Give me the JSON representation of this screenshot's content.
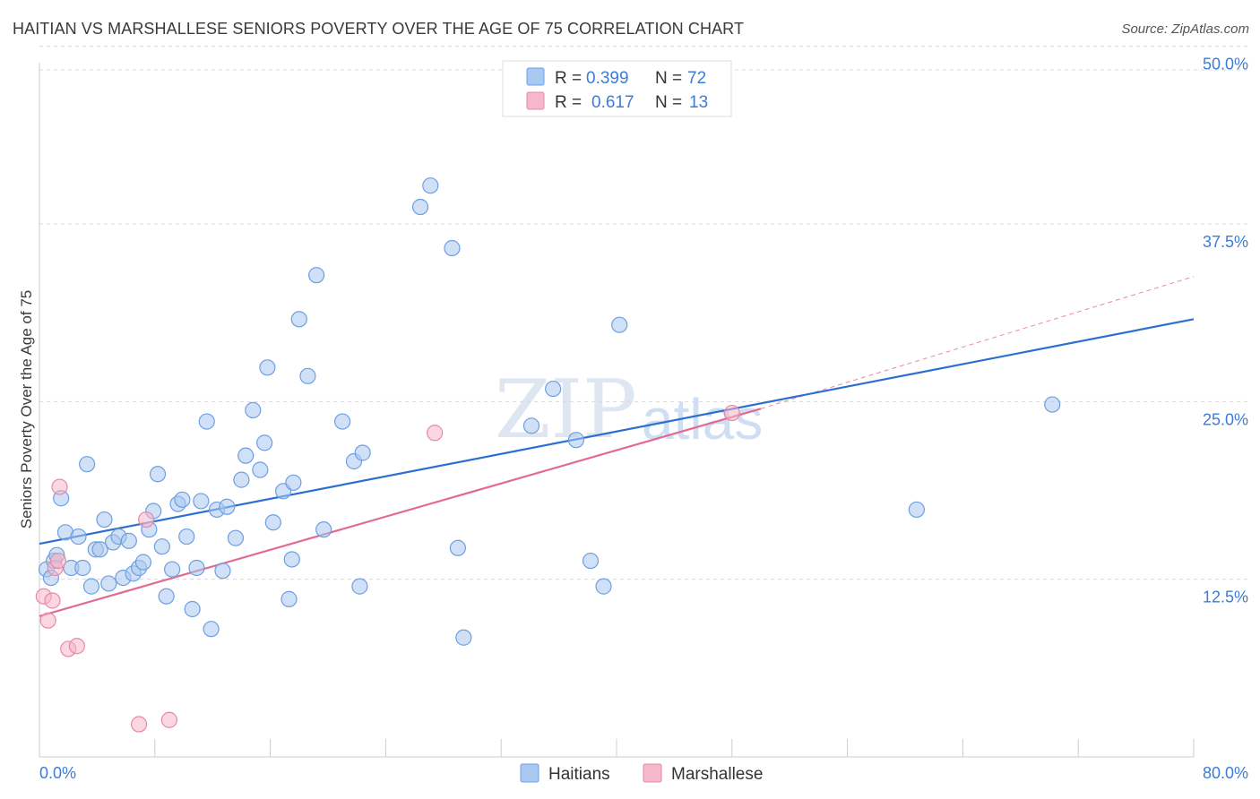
{
  "title": "HAITIAN VS MARSHALLESE SENIORS POVERTY OVER THE AGE OF 75 CORRELATION CHART",
  "source": "Source: ZipAtlas.com",
  "watermark": {
    "zip": "ZIP",
    "atlas": "atlas"
  },
  "chart_data": {
    "type": "scatter",
    "ylabel": "Seniors Poverty Over the Age of 75",
    "xlim": [
      0,
      80
    ],
    "ylim": [
      0,
      52
    ],
    "y_ticks": [
      {
        "value": 12.5,
        "label": "12.5%"
      },
      {
        "value": 25.0,
        "label": "25.0%"
      },
      {
        "value": 37.5,
        "label": "37.5%"
      },
      {
        "value": 50.0,
        "label": "50.0%"
      }
    ],
    "x_tick_labels": {
      "min": "0.0%",
      "max": "80.0%"
    },
    "x_minor_ticks": [
      8,
      16,
      24,
      32,
      40,
      48,
      56,
      64,
      72,
      80
    ],
    "grid": true,
    "legend_top": [
      {
        "r_label": "R =",
        "r": "0.399",
        "n_label": "N =",
        "n": "72",
        "color": "#a9c8f0"
      },
      {
        "r_label": "R =",
        "r": "0.617",
        "n_label": "N =",
        "n": "13",
        "color": "#f5b7c9"
      }
    ],
    "series": [
      {
        "name": "Haitians",
        "color": "#a9c8f0",
        "stroke": "#6d9fe0",
        "trend": {
          "x0": 0,
          "y0": 15.0,
          "x1": 80,
          "y1": 30.8,
          "color": "#2b6fd1"
        },
        "points": [
          [
            0.5,
            13.2
          ],
          [
            0.8,
            12.6
          ],
          [
            1.0,
            13.8
          ],
          [
            1.2,
            14.2
          ],
          [
            1.5,
            18.2
          ],
          [
            1.8,
            15.8
          ],
          [
            2.2,
            13.3
          ],
          [
            2.7,
            15.5
          ],
          [
            3.0,
            13.3
          ],
          [
            3.3,
            20.6
          ],
          [
            3.6,
            12.0
          ],
          [
            3.9,
            14.6
          ],
          [
            4.2,
            14.6
          ],
          [
            4.5,
            16.7
          ],
          [
            4.8,
            12.2
          ],
          [
            5.1,
            15.1
          ],
          [
            5.5,
            15.5
          ],
          [
            5.8,
            12.6
          ],
          [
            6.2,
            15.2
          ],
          [
            6.5,
            12.9
          ],
          [
            6.9,
            13.3
          ],
          [
            7.2,
            13.7
          ],
          [
            7.6,
            16.0
          ],
          [
            7.9,
            17.3
          ],
          [
            8.2,
            19.9
          ],
          [
            8.5,
            14.8
          ],
          [
            8.8,
            11.3
          ],
          [
            9.2,
            13.2
          ],
          [
            9.6,
            17.8
          ],
          [
            9.9,
            18.1
          ],
          [
            10.2,
            15.5
          ],
          [
            10.6,
            10.4
          ],
          [
            10.9,
            13.3
          ],
          [
            11.2,
            18.0
          ],
          [
            11.6,
            23.6
          ],
          [
            11.9,
            9.0
          ],
          [
            12.3,
            17.4
          ],
          [
            12.7,
            13.1
          ],
          [
            13.0,
            17.6
          ],
          [
            13.6,
            15.4
          ],
          [
            14.0,
            19.5
          ],
          [
            14.3,
            21.2
          ],
          [
            14.8,
            24.4
          ],
          [
            15.3,
            20.2
          ],
          [
            15.6,
            22.1
          ],
          [
            15.8,
            27.4
          ],
          [
            16.2,
            16.5
          ],
          [
            16.9,
            18.7
          ],
          [
            17.3,
            11.1
          ],
          [
            17.5,
            13.9
          ],
          [
            17.6,
            19.3
          ],
          [
            18.0,
            30.8
          ],
          [
            18.6,
            26.8
          ],
          [
            19.2,
            33.9
          ],
          [
            19.7,
            16.0
          ],
          [
            21.0,
            23.6
          ],
          [
            21.8,
            20.8
          ],
          [
            22.2,
            12.0
          ],
          [
            22.4,
            21.4
          ],
          [
            26.4,
            38.7
          ],
          [
            27.1,
            40.2
          ],
          [
            28.6,
            35.8
          ],
          [
            29.0,
            14.7
          ],
          [
            29.4,
            8.4
          ],
          [
            34.1,
            23.3
          ],
          [
            35.6,
            25.9
          ],
          [
            37.2,
            22.3
          ],
          [
            38.2,
            13.8
          ],
          [
            39.1,
            12.0
          ],
          [
            40.2,
            30.4
          ],
          [
            60.8,
            17.4
          ],
          [
            70.2,
            24.8
          ]
        ]
      },
      {
        "name": "Marshallese",
        "color": "#f5b7c9",
        "stroke": "#e58aa6",
        "trend": {
          "x0": 0,
          "y0": 9.9,
          "x1": 50.0,
          "y1": 24.5,
          "color": "#e26b93"
        },
        "trend_ext": {
          "x0": 50.0,
          "y0": 24.5,
          "x1": 80,
          "y1": 33.8
        },
        "points": [
          [
            0.3,
            11.3
          ],
          [
            0.6,
            9.6
          ],
          [
            0.9,
            11.0
          ],
          [
            1.1,
            13.3
          ],
          [
            1.3,
            13.8
          ],
          [
            1.4,
            19.0
          ],
          [
            2.0,
            7.6
          ],
          [
            2.6,
            7.8
          ],
          [
            6.9,
            2.3
          ],
          [
            7.4,
            16.7
          ],
          [
            9.0,
            2.6
          ],
          [
            27.4,
            22.8
          ],
          [
            48.0,
            24.2
          ]
        ]
      }
    ]
  }
}
